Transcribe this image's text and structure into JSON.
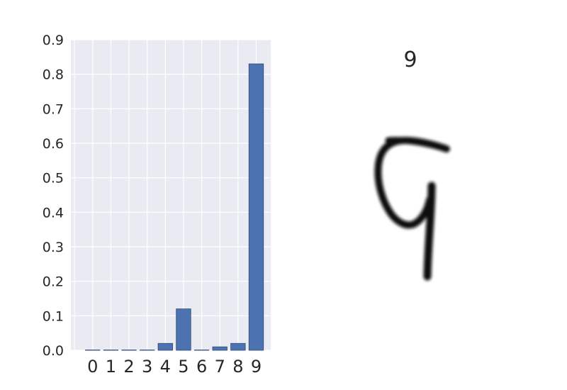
{
  "chart_data": [
    {
      "type": "bar",
      "categories": [
        "0",
        "1",
        "2",
        "3",
        "4",
        "5",
        "6",
        "7",
        "8",
        "9"
      ],
      "values": [
        0.001,
        0.001,
        0.001,
        0.001,
        0.02,
        0.12,
        0.001,
        0.01,
        0.02,
        0.83
      ],
      "ylim": [
        0,
        0.9
      ],
      "yticks": [
        "0.0",
        "0.1",
        "0.2",
        "0.3",
        "0.4",
        "0.5",
        "0.6",
        "0.7",
        "0.8",
        "0.9"
      ],
      "title": "",
      "xlabel": "",
      "ylabel": "",
      "grid": true,
      "colors": {
        "bar": "#4c72b0",
        "bar_edge": "#2f4a78",
        "plot_bg": "#eaeaf2",
        "grid": "#ffffff"
      }
    }
  ],
  "digit_panel": {
    "title": "9",
    "image": "handwritten digit 9, black strokes on white"
  }
}
